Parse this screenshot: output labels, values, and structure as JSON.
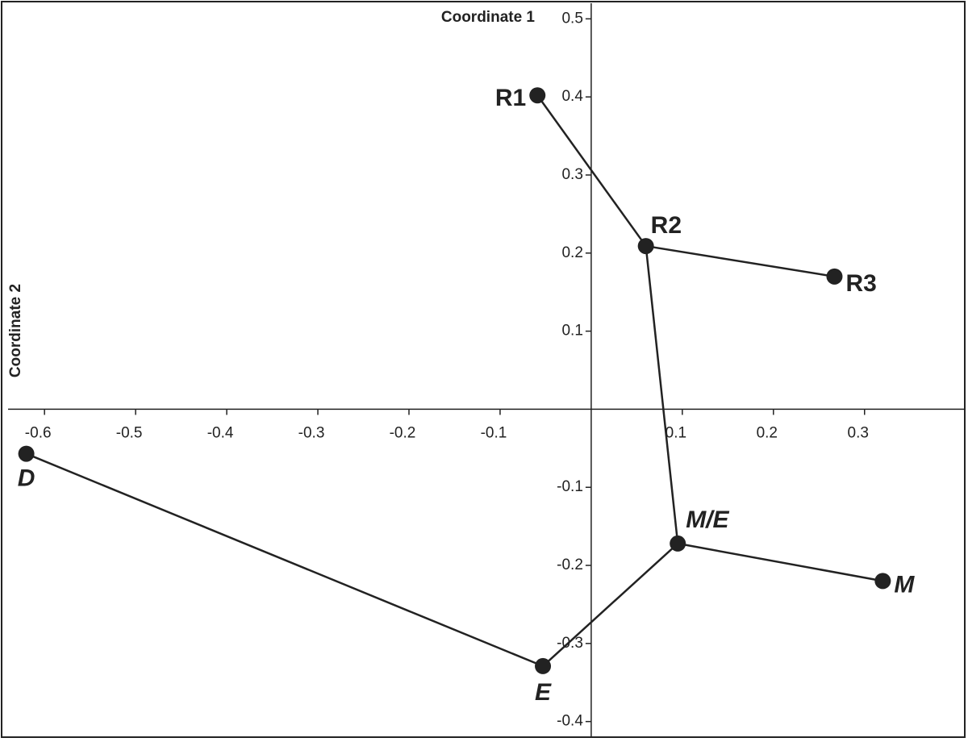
{
  "chart_data": {
    "type": "scatter",
    "x_label": "Coordinate 1",
    "y_label": "Coordinate 2",
    "points": [
      {
        "label": "R1",
        "x": -0.059,
        "y": 0.402,
        "italic": false
      },
      {
        "label": "R2",
        "x": 0.06,
        "y": 0.209,
        "italic": false
      },
      {
        "label": "R3",
        "x": 0.267,
        "y": 0.17,
        "italic": false
      },
      {
        "label": "M/E",
        "x": 0.095,
        "y": -0.172,
        "italic": true
      },
      {
        "label": "M",
        "x": 0.32,
        "y": -0.22,
        "italic": true
      },
      {
        "label": "E",
        "x": -0.053,
        "y": -0.329,
        "italic": true
      },
      {
        "label": "D",
        "x": -0.62,
        "y": -0.057,
        "italic": true
      }
    ],
    "edges": [
      [
        "R1",
        "R2"
      ],
      [
        "R2",
        "R3"
      ],
      [
        "R2",
        "M/E"
      ],
      [
        "M/E",
        "M"
      ],
      [
        "M/E",
        "E"
      ],
      [
        "E",
        "D"
      ]
    ],
    "color": "#222222",
    "xlim": [
      -0.64,
      0.41
    ],
    "ylim": [
      -0.42,
      0.52
    ],
    "xticks": [
      -0.6,
      -0.5,
      -0.4,
      -0.3,
      -0.2,
      -0.1,
      0.1,
      0.2,
      0.3
    ],
    "yticks": [
      0.5,
      0.4,
      0.3,
      0.2,
      0.1,
      -0.1,
      -0.2,
      -0.3,
      -0.4
    ]
  }
}
